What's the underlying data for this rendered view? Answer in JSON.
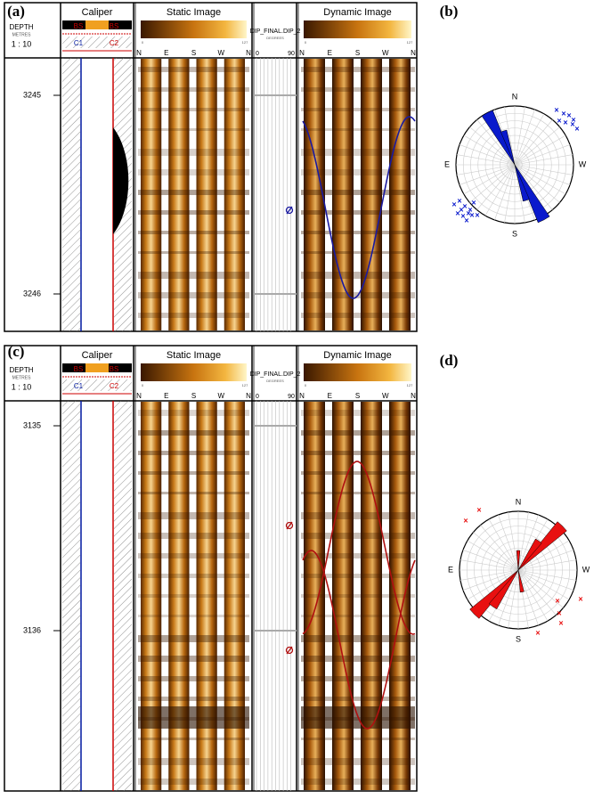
{
  "figure_labels": [
    "(a)",
    "(b)",
    "(c)",
    "(d)"
  ],
  "logs": [
    {
      "depth_header": "DEPTH",
      "depth_unit": "METRES",
      "scale": "1 : 10",
      "caliper_title": "Caliper",
      "bs_labels": [
        "BS",
        "BS"
      ],
      "c_labels": [
        "C1",
        "C2"
      ],
      "static_title": "Static Image",
      "dynamic_title": "Dynamic Image",
      "image_range": [
        "0",
        "127"
      ],
      "dip_header": "DIP_FINAL.DIP_2",
      "dip_unit": "DEGREES",
      "dip_range": [
        "0",
        "90"
      ],
      "azimuths": [
        "N",
        "E",
        "S",
        "W",
        "N"
      ],
      "depths": [
        3245,
        3246
      ]
    },
    {
      "depth_header": "DEPTH",
      "depth_unit": "METRES",
      "scale": "1 : 10",
      "caliper_title": "Caliper",
      "bs_labels": [
        "BS",
        "BS"
      ],
      "c_labels": [
        "C1",
        "C2"
      ],
      "static_title": "Static Image",
      "dynamic_title": "Dynamic Image",
      "image_range": [
        "0",
        "127"
      ],
      "dip_header": "DIP_FINAL.DIP_2",
      "dip_unit": "DEGREES",
      "dip_range": [
        "0",
        "90"
      ],
      "azimuths": [
        "N",
        "E",
        "S",
        "W",
        "N"
      ],
      "depths": [
        3135,
        3136
      ]
    }
  ],
  "roses": [
    {
      "north": "N",
      "east": "E",
      "south": "S",
      "west": "W"
    },
    {
      "north": "N",
      "east": "E",
      "south": "S",
      "west": "W"
    }
  ]
}
